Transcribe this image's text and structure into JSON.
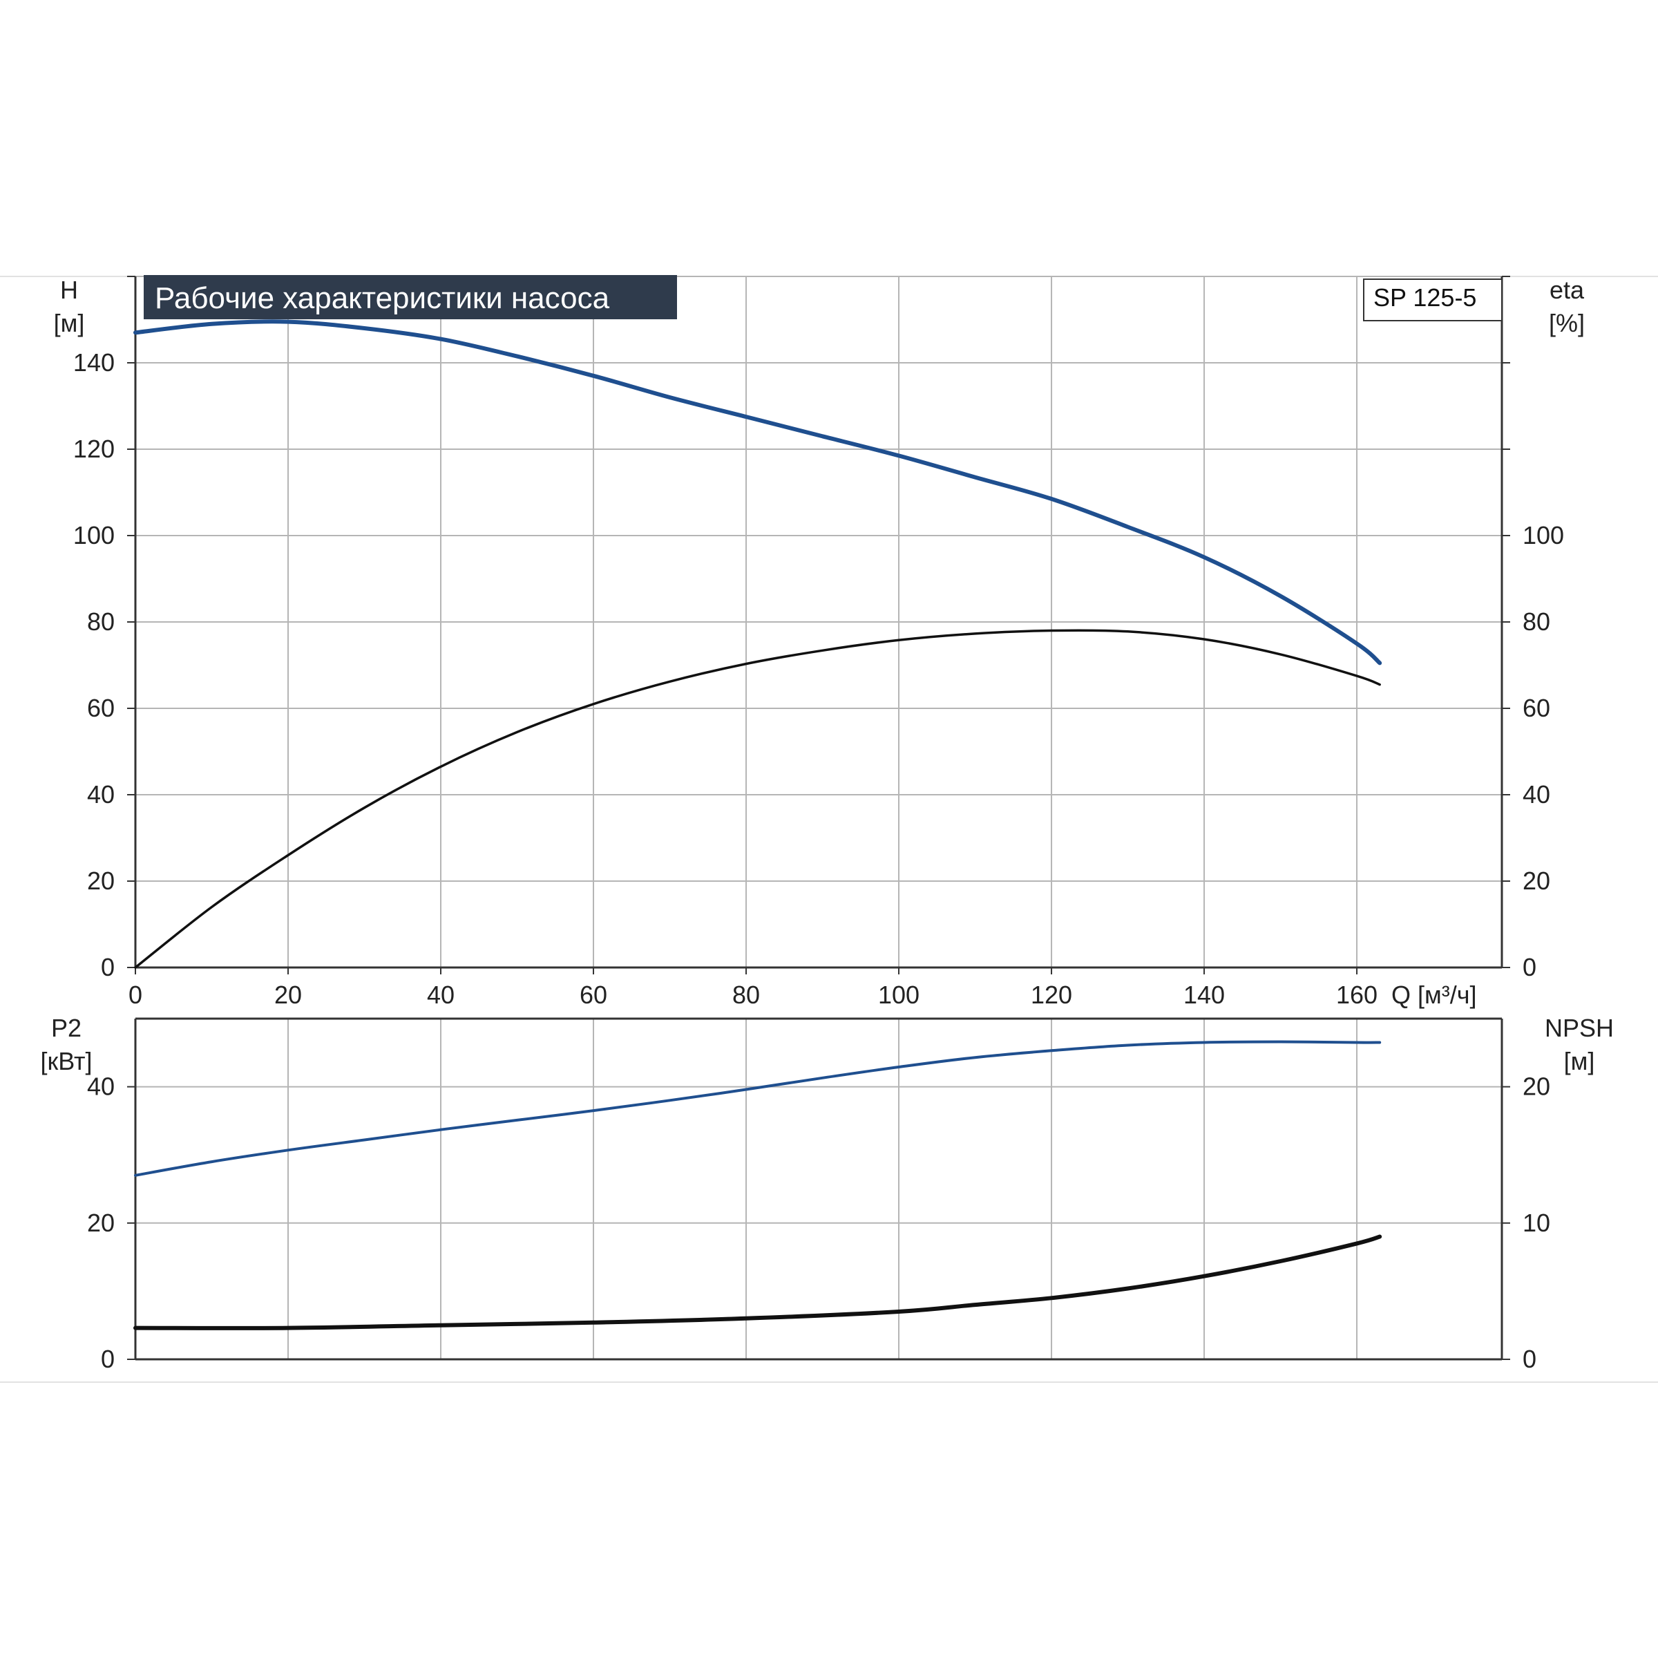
{
  "title": "Рабочие характеристики насоса",
  "model": "SP 125-5",
  "colors": {
    "background": "#ffffff",
    "grid": "#b5b5b5",
    "axis": "#333333",
    "title_box": "#2f3b4c",
    "head_curve": "#1f4f8f",
    "efficiency_curve": "#111111",
    "power_curve": "#1f4f8f",
    "npsh_curve": "#111111"
  },
  "chart_data": [
    {
      "type": "line",
      "panel": "top",
      "title": "Рабочие характеристики насоса",
      "xlabel": "Q [м³/ч]",
      "ylabel_left": [
        "H",
        "[м]"
      ],
      "ylabel_right": [
        "eta",
        "[%]"
      ],
      "xlim": [
        0,
        179
      ],
      "ylim_left": [
        0,
        160
      ],
      "ylim_right": [
        0,
        160
      ],
      "x_ticks": [
        0,
        20,
        40,
        60,
        80,
        100,
        120,
        140,
        160
      ],
      "y_ticks_left": [
        0,
        20,
        40,
        60,
        80,
        100,
        120,
        140
      ],
      "y_ticks_right": [
        0,
        20,
        40,
        60,
        80,
        100
      ],
      "grid": true,
      "series": [
        {
          "name": "H",
          "axis": "left",
          "color": "#1f4f8f",
          "x": [
            0,
            10,
            20,
            30,
            40,
            50,
            60,
            70,
            80,
            90,
            100,
            110,
            120,
            130,
            140,
            150,
            160,
            163
          ],
          "y": [
            147,
            149,
            149.5,
            148,
            145.5,
            141.5,
            137,
            132,
            127.5,
            123,
            118.5,
            113.5,
            108.5,
            102,
            95,
            86,
            75,
            70.5
          ]
        },
        {
          "name": "eta",
          "axis": "right",
          "color": "#111111",
          "x": [
            0,
            10,
            20,
            30,
            40,
            50,
            60,
            70,
            80,
            90,
            100,
            110,
            120,
            130,
            140,
            150,
            160,
            163
          ],
          "y": [
            0,
            14,
            26,
            37,
            46.5,
            54.5,
            61,
            66.2,
            70.3,
            73.4,
            75.8,
            77.3,
            78,
            77.8,
            76,
            72.5,
            67.5,
            65.5
          ]
        }
      ]
    },
    {
      "type": "line",
      "panel": "bottom",
      "xlabel": "",
      "ylabel_left": [
        "P2",
        "[кВт]"
      ],
      "ylabel_right": [
        "NPSH",
        "[м]"
      ],
      "xlim": [
        0,
        179
      ],
      "ylim_left": [
        0,
        50
      ],
      "ylim_right": [
        0,
        25
      ],
      "x_ticks": [
        0,
        20,
        40,
        60,
        80,
        100,
        120,
        140,
        160
      ],
      "y_ticks_left": [
        0,
        20,
        40
      ],
      "y_ticks_right": [
        0,
        10,
        20
      ],
      "grid": true,
      "series": [
        {
          "name": "P2",
          "axis": "left",
          "color": "#1f4f8f",
          "x": [
            0,
            10,
            20,
            30,
            40,
            50,
            60,
            70,
            80,
            90,
            100,
            110,
            120,
            130,
            140,
            150,
            160,
            163
          ],
          "y": [
            27,
            29,
            30.7,
            32.2,
            33.7,
            35.1,
            36.5,
            38,
            39.6,
            41.3,
            42.9,
            44.3,
            45.3,
            46.1,
            46.5,
            46.6,
            46.5,
            46.5
          ]
        },
        {
          "name": "NPSH",
          "axis": "right",
          "color": "#111111",
          "x": [
            0,
            20,
            40,
            60,
            80,
            100,
            110,
            120,
            130,
            140,
            150,
            160,
            163
          ],
          "y": [
            2.3,
            2.3,
            2.5,
            2.7,
            3.0,
            3.5,
            4.0,
            4.5,
            5.2,
            6.1,
            7.2,
            8.5,
            9
          ]
        }
      ]
    }
  ]
}
